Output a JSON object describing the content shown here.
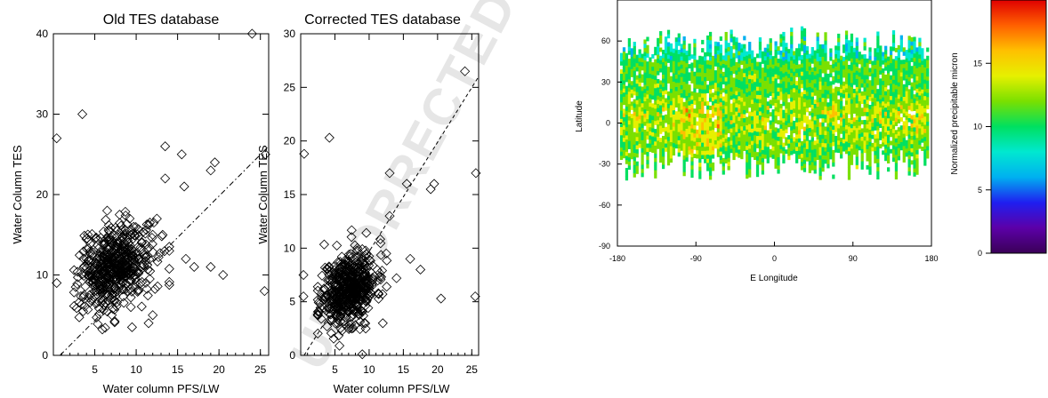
{
  "chart_data": [
    {
      "type": "scatter",
      "title": "Old TES database",
      "xlabel": "Water column PFS/LW",
      "ylabel": "Water Column TES",
      "xlim": [
        0,
        26
      ],
      "ylim": [
        0,
        40
      ],
      "xticks": [
        "5",
        "10",
        "15",
        "20",
        "25"
      ],
      "yticks": [
        "0",
        "10",
        "20",
        "30",
        "40"
      ],
      "marker": "open-diamond",
      "reference_line": {
        "style": "dash-dot",
        "from": [
          0.8,
          0
        ],
        "to": [
          26,
          26
        ]
      },
      "cluster": {
        "x_center": 7.5,
        "y_center": 11,
        "x_spread": 2.2,
        "y_spread": 2.6,
        "n": 520,
        "seed": 7
      },
      "outliers": [
        [
          0.4,
          27
        ],
        [
          3.5,
          30
        ],
        [
          13.5,
          26
        ],
        [
          15.5,
          25
        ],
        [
          19.5,
          24
        ],
        [
          19,
          23
        ],
        [
          24,
          40
        ],
        [
          25.6,
          25
        ],
        [
          13.5,
          22
        ],
        [
          15.8,
          21
        ],
        [
          0.4,
          9
        ],
        [
          12,
          15
        ],
        [
          16,
          12
        ],
        [
          17,
          11
        ],
        [
          19,
          11
        ],
        [
          20.5,
          10
        ],
        [
          25.5,
          8
        ],
        [
          12,
          5
        ],
        [
          11.5,
          4
        ],
        [
          9.5,
          3.5
        ],
        [
          12.5,
          17
        ],
        [
          14,
          13
        ],
        [
          8,
          17.5
        ],
        [
          6.5,
          18
        ]
      ]
    },
    {
      "type": "scatter",
      "title": "Corrected TES database",
      "xlabel": "Water column PFS/LW",
      "ylabel": "Water Column TES",
      "xlim": [
        0,
        26
      ],
      "ylim": [
        0,
        30
      ],
      "xticks": [
        "5",
        "10",
        "15",
        "20",
        "25"
      ],
      "yticks": [
        "0",
        "5",
        "10",
        "15",
        "20",
        "25",
        "30"
      ],
      "marker": "open-diamond",
      "reference_line": {
        "style": "dashed",
        "from": [
          0.5,
          0
        ],
        "to": [
          26,
          26
        ]
      },
      "cluster": {
        "x_center": 7,
        "y_center": 6.3,
        "x_spread": 2.0,
        "y_spread": 1.7,
        "n": 520,
        "seed": 11
      },
      "outliers": [
        [
          0.5,
          18.8
        ],
        [
          4.2,
          20.3
        ],
        [
          13,
          17
        ],
        [
          15.5,
          16
        ],
        [
          19.5,
          16
        ],
        [
          19,
          15.5
        ],
        [
          24,
          26.5
        ],
        [
          25.6,
          17
        ],
        [
          13,
          13
        ],
        [
          0.4,
          7.5
        ],
        [
          0.4,
          5.5
        ],
        [
          16,
          9
        ],
        [
          17.5,
          8
        ],
        [
          20.5,
          5.3
        ],
        [
          25.5,
          5.5
        ],
        [
          12,
          3
        ],
        [
          9.5,
          2.5
        ],
        [
          9,
          0.1
        ],
        [
          12.5,
          9.5
        ],
        [
          14,
          7.2
        ]
      ]
    },
    {
      "type": "heatmap",
      "xlabel": "E Longitude",
      "ylabel": "Latitude",
      "xlim": [
        -180,
        180
      ],
      "ylim": [
        -90,
        90
      ],
      "xticks": [
        "-180",
        "-90",
        "0",
        "90",
        "180"
      ],
      "yticks": [
        "-90",
        "-60",
        "-30",
        "0",
        "30",
        "60"
      ],
      "coverage_lat": [
        -45,
        70
      ],
      "colorbar": {
        "label": "Normalized precipitable micron",
        "range": [
          0,
          20
        ],
        "ticks": [
          "0",
          "5",
          "10",
          "15"
        ],
        "colormap": [
          "#3a0057",
          "#5c00a8",
          "#1f1ff0",
          "#00b0f0",
          "#00e8d0",
          "#00e060",
          "#7ae000",
          "#e6f000",
          "#ffc000",
          "#ff6000",
          "#e00000"
        ]
      }
    }
  ],
  "watermark": "UNCORRECTED PROOF"
}
